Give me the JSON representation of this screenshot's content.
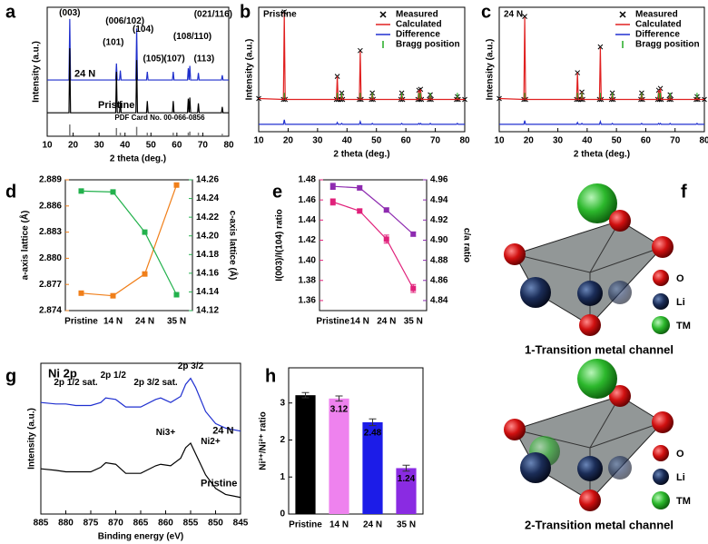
{
  "chart_data": [
    {
      "type": "line",
      "label": "a",
      "xlabel": "2 theta (deg.)",
      "ylabel": "Intensity (a.u.)",
      "xlim": [
        10,
        80
      ],
      "xticks": [
        10,
        20,
        30,
        40,
        50,
        60,
        70,
        80
      ],
      "ylim": [
        0,
        110
      ],
      "x": [
        10,
        18.4,
        18.7,
        19.0,
        36.4,
        36.7,
        37.0,
        37.9,
        38.2,
        38.5,
        44.2,
        44.5,
        44.8,
        48.3,
        48.6,
        48.9,
        58.3,
        58.6,
        58.9,
        64.1,
        64.4,
        64.7,
        65.0,
        65.3,
        68.0,
        68.3,
        68.6,
        77.2,
        77.5,
        77.8,
        80
      ],
      "series": [
        {
          "name": "24 N",
          "color": "#1f2fcc",
          "values": [
            48,
            48,
            100,
            48,
            48,
            62,
            48,
            48,
            56,
            48,
            48,
            92,
            48,
            48,
            55,
            48,
            48,
            55,
            48,
            48,
            58,
            48,
            60,
            48,
            48,
            54,
            48,
            48,
            52,
            48,
            48
          ]
        },
        {
          "name": "Pristine",
          "color": "#000000",
          "values": [
            20,
            20,
            75,
            20,
            20,
            55,
            20,
            20,
            30,
            20,
            20,
            65,
            20,
            20,
            30,
            20,
            20,
            30,
            20,
            20,
            32,
            20,
            33,
            20,
            20,
            28,
            20,
            20,
            25,
            20,
            20
          ]
        }
      ],
      "reference": {
        "name": "PDF Card No. 00-066-0856",
        "color": "#777777",
        "x": [
          18.7,
          36.7,
          38.2,
          44.5,
          48.6,
          58.6,
          64.4,
          65.0,
          68.3,
          77.5
        ],
        "values": [
          10,
          7,
          3,
          8,
          3,
          3,
          3,
          4,
          3,
          2
        ]
      },
      "annotations": [
        {
          "text": "(003)",
          "x": 18.7,
          "y": 105
        },
        {
          "text": "(101)",
          "x": 35.5,
          "y": 80
        },
        {
          "text": "(006/102)",
          "x": 40,
          "y": 98
        },
        {
          "text": "(104)",
          "x": 47,
          "y": 91
        },
        {
          "text": "(105)",
          "x": 51,
          "y": 66
        },
        {
          "text": "(107)",
          "x": 59,
          "y": 66
        },
        {
          "text": "(108/110)",
          "x": 66,
          "y": 85
        },
        {
          "text": "(113)",
          "x": 70.5,
          "y": 66
        },
        {
          "text": "(021/116)",
          "x": 74,
          "y": 104
        }
      ]
    },
    {
      "type": "rietveld",
      "label": "b",
      "title": "Pristine",
      "xlabel": "2 theta (deg.)",
      "ylabel": "Intensity (a.u.)",
      "xlim": [
        10,
        80
      ],
      "xticks": [
        10,
        20,
        30,
        40,
        50,
        60,
        70,
        80
      ],
      "ylim": [
        -30,
        105
      ],
      "x": [
        10,
        18.4,
        18.7,
        19.0,
        36.4,
        36.7,
        37.0,
        37.9,
        38.2,
        38.5,
        44.2,
        44.5,
        44.8,
        48.3,
        48.6,
        48.9,
        58.3,
        58.6,
        58.9,
        64.1,
        64.4,
        64.7,
        65.0,
        65.3,
        68.0,
        68.3,
        68.6,
        77.2,
        77.5,
        77.8,
        80
      ],
      "series": [
        {
          "name": "Measured",
          "color": "#000000",
          "values": [
            6,
            5,
            100,
            5,
            5,
            30,
            5,
            5,
            12,
            5,
            5,
            58,
            5,
            5,
            12,
            5,
            5,
            12,
            5,
            5,
            15,
            5,
            16,
            5,
            5,
            10,
            5,
            5,
            8,
            5,
            5
          ]
        },
        {
          "name": "Calculated",
          "color": "#e02020",
          "values": [
            6,
            5,
            99,
            5,
            5,
            30,
            5,
            5,
            12,
            5,
            5,
            57,
            5,
            5,
            12,
            5,
            5,
            12,
            5,
            5,
            15,
            5,
            16,
            5,
            5,
            10,
            5,
            5,
            8,
            5,
            5
          ]
        },
        {
          "name": "Difference",
          "color": "#2030d0",
          "values": [
            -22,
            -22,
            -17,
            -22,
            -22,
            -20,
            -22,
            -22,
            -21,
            -22,
            -22,
            -19,
            -22,
            -22,
            -21,
            -22,
            -22,
            -21,
            -22,
            -22,
            -21,
            -22,
            -21,
            -22,
            -22,
            -21,
            -22,
            -22,
            -21,
            -22,
            -22
          ]
        }
      ],
      "bragg": {
        "name": "Bragg position",
        "color": "#22aa22",
        "x": [
          18.7,
          36.7,
          38.2,
          44.5,
          48.6,
          58.6,
          64.4,
          65.0,
          68.3,
          77.5
        ]
      }
    },
    {
      "type": "rietveld",
      "label": "c",
      "title": "24 N",
      "xlabel": "2 theta (deg.)",
      "ylabel": "Intensity (a.u.)",
      "xlim": [
        10,
        80
      ],
      "xticks": [
        10,
        20,
        30,
        40,
        50,
        60,
        70,
        80
      ],
      "ylim": [
        -30,
        105
      ],
      "x": [
        10,
        18.4,
        18.7,
        19.0,
        36.4,
        36.7,
        37.0,
        37.9,
        38.2,
        38.5,
        44.2,
        44.5,
        44.8,
        48.3,
        48.6,
        48.9,
        58.3,
        58.6,
        58.9,
        64.1,
        64.4,
        64.7,
        65.0,
        65.3,
        68.0,
        68.3,
        68.6,
        77.2,
        77.5,
        77.8,
        80
      ],
      "series": [
        {
          "name": "Measured",
          "color": "#000000",
          "values": [
            6,
            5,
            95,
            5,
            5,
            34,
            5,
            5,
            13,
            5,
            5,
            62,
            5,
            5,
            12,
            5,
            5,
            12,
            5,
            5,
            15,
            5,
            17,
            5,
            5,
            10,
            5,
            5,
            8,
            5,
            5
          ]
        },
        {
          "name": "Calculated",
          "color": "#e02020",
          "values": [
            6,
            5,
            94,
            5,
            5,
            34,
            5,
            5,
            13,
            5,
            5,
            61,
            5,
            5,
            12,
            5,
            5,
            12,
            5,
            5,
            15,
            5,
            17,
            5,
            5,
            10,
            5,
            5,
            8,
            5,
            5
          ]
        },
        {
          "name": "Difference",
          "color": "#2030d0",
          "values": [
            -22,
            -22,
            -18,
            -22,
            -22,
            -20,
            -22,
            -22,
            -21,
            -22,
            -22,
            -19,
            -22,
            -22,
            -21,
            -22,
            -22,
            -21,
            -22,
            -22,
            -21,
            -22,
            -21,
            -22,
            -22,
            -21,
            -22,
            -22,
            -21,
            -22,
            -22
          ]
        }
      ],
      "bragg": {
        "name": "Bragg position",
        "color": "#22aa22",
        "x": [
          18.7,
          36.7,
          38.2,
          44.5,
          48.6,
          58.6,
          64.4,
          65.0,
          68.3,
          77.5
        ]
      }
    },
    {
      "type": "line",
      "label": "d",
      "ylabel": "a-axis lattice (Å)",
      "y2label": "c-axis lattice (Å)",
      "categories": [
        "Pristine",
        "14 N",
        "24 N",
        "35 N"
      ],
      "ylim": [
        2.874,
        2.889
      ],
      "yticks": [
        2.874,
        2.877,
        {
          "value": 2.88,
          "label": "2.880"
        },
        2.883,
        2.886,
        2.889
      ],
      "y2lim": [
        14.12,
        14.26
      ],
      "y2ticks": [
        14.12,
        14.14,
        14.16,
        14.18,
        {
          "value": 14.2,
          "label": "14.20"
        },
        14.22,
        14.24,
        14.26
      ],
      "series": [
        {
          "color": "#f07f1a",
          "values": [
            2.876,
            2.8757,
            2.8782,
            2.8884
          ]
        },
        {
          "color": "#22b14c",
          "axis": "y2",
          "values": [
            14.248,
            14.247,
            14.204,
            14.137
          ]
        }
      ]
    },
    {
      "type": "line",
      "label": "e",
      "ylabel": "I(003)/I(104) ratio",
      "y2label": "c/a ratio",
      "categories": [
        "Pristine",
        "14 N",
        "24 N",
        "35 N"
      ],
      "ylim": [
        1.35,
        1.48
      ],
      "yticks": [
        1.36,
        1.38,
        {
          "value": 1.4,
          "label": "1.40"
        },
        1.42,
        1.44,
        1.46,
        1.48
      ],
      "y2lim": [
        4.83,
        4.96
      ],
      "y2ticks": [
        4.84,
        4.86,
        4.88,
        {
          "value": 4.9,
          "label": "4.90"
        },
        4.92,
        4.94,
        4.96
      ],
      "series": [
        {
          "color": "#e0207a",
          "values": [
            1.458,
            1.449,
            1.421,
            1.372
          ],
          "errors": [
            0.003,
            0.002,
            0.004,
            0.004
          ]
        },
        {
          "color": "#8e2bb0",
          "axis": "y2",
          "values": [
            4.9535,
            4.952,
            4.93,
            4.906
          ],
          "errors": [
            0.003,
            0.002,
            0.002,
            0.002
          ]
        }
      ]
    },
    {
      "type": "line",
      "label": "g",
      "title": "Ni 2p",
      "xlabel": "Binding energy (eV)",
      "ylabel": "Intensity (a.u.)",
      "xlim": [
        885,
        845
      ],
      "xticks": [
        885,
        880,
        875,
        870,
        865,
        860,
        855,
        850,
        845
      ],
      "ylim": [
        0,
        100
      ],
      "x": [
        885,
        882,
        880,
        878,
        875,
        873,
        872,
        870,
        868,
        865,
        862,
        861,
        859,
        857,
        856,
        855,
        854,
        852,
        850,
        848,
        845
      ],
      "series": [
        {
          "name": "24 N",
          "color": "#2030d0",
          "values": [
            74,
            73,
            73,
            72,
            72,
            74,
            77,
            76,
            71,
            71,
            76,
            77,
            74,
            78,
            86,
            90,
            84,
            68,
            60,
            57,
            55
          ]
        },
        {
          "name": "Pristine",
          "color": "#000000",
          "values": [
            30,
            29,
            28,
            28,
            28,
            31,
            34,
            33,
            27,
            27,
            32,
            33,
            32,
            37,
            44,
            47,
            40,
            26,
            17,
            13,
            11
          ]
        }
      ],
      "annotations": [
        {
          "text": "2p 1/2 sat.",
          "x": 878,
          "y": 87
        },
        {
          "text": "2p 1/2",
          "x": 870.5,
          "y": 92
        },
        {
          "text": "2p 3/2 sat.",
          "x": 862,
          "y": 87
        },
        {
          "text": "2p 3/2",
          "x": 855,
          "y": 98
        },
        {
          "text": "Ni3+",
          "x": 860,
          "y": 54,
          "color": "#e08a00"
        },
        {
          "text": "Ni2+",
          "x": 851,
          "y": 48,
          "color": "#cc1111"
        }
      ]
    },
    {
      "type": "bar",
      "label": "h",
      "ylabel": "Ni³⁺/Ni²⁺ ratio",
      "categories": [
        "Pristine",
        "14 N",
        "24 N",
        "35 N"
      ],
      "values": [
        3.21,
        3.12,
        2.48,
        1.24
      ],
      "errors": [
        0.07,
        0.07,
        0.09,
        0.08
      ],
      "colors": [
        "#000000",
        "#ee82ee",
        "#1c1ce8",
        "#8a2be2"
      ],
      "ylim": [
        0,
        3.95
      ],
      "yticks": [
        0,
        1,
        2,
        3
      ]
    }
  ],
  "diagram": {
    "label": "f",
    "panels": [
      {
        "caption": "1-Transition metal channel",
        "legend": [
          "O",
          "Li",
          "TM"
        ]
      },
      {
        "caption": "2-Transition metal channel",
        "legend": [
          "O",
          "Li",
          "TM"
        ]
      }
    ]
  }
}
